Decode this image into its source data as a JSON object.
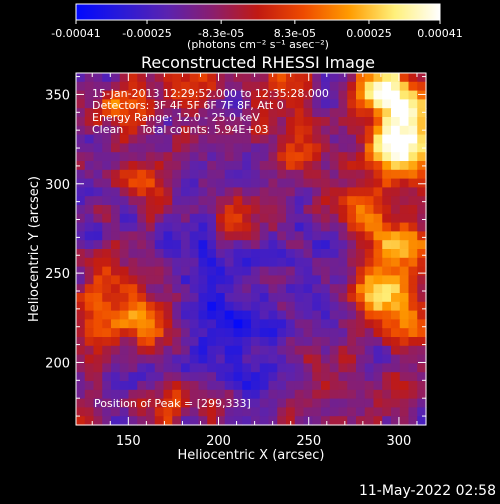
{
  "colorbar": {
    "tick_labels": [
      "-0.00041",
      "-0.00025",
      "-8.3e-05",
      "8.3e-05",
      "0.00025",
      "0.00041"
    ],
    "tick_values": [
      -0.00041,
      -0.00025,
      -8.3e-05,
      8.3e-05,
      0.00025,
      0.00041
    ],
    "range": [
      -0.00041,
      0.00041
    ],
    "units_text": "(photons cm⁻² s⁻¹ asec⁻²)",
    "colors": [
      "#0008ff",
      "#2a1ad8",
      "#5a22b0",
      "#8a1e6e",
      "#c11a12",
      "#ee4a00",
      "#ff9b00",
      "#fff07a",
      "#ffffff"
    ]
  },
  "chart_data": {
    "type": "heatmap",
    "title": "Reconstructed RHESSI Image",
    "xlabel": "Heliocentric X (arcsec)",
    "ylabel": "Heliocentric Y (arcsec)",
    "xlim": [
      121,
      315
    ],
    "ylim": [
      165,
      362
    ],
    "xticks": [
      150,
      200,
      250,
      300
    ],
    "yticks": [
      200,
      250,
      300,
      350
    ],
    "grid_size": [
      40,
      40
    ],
    "peak": [
      299,
      333
    ],
    "hot_spots": [
      {
        "x": 299,
        "y": 318,
        "strength": 1.0
      },
      {
        "x": 290,
        "y": 352,
        "strength": 0.85
      },
      {
        "x": 308,
        "y": 338,
        "strength": 0.7
      },
      {
        "x": 278,
        "y": 288,
        "strength": 0.6
      },
      {
        "x": 300,
        "y": 265,
        "strength": 0.65
      },
      {
        "x": 285,
        "y": 240,
        "strength": 0.55
      },
      {
        "x": 300,
        "y": 230,
        "strength": 0.5
      },
      {
        "x": 140,
        "y": 245,
        "strength": 0.45
      },
      {
        "x": 160,
        "y": 222,
        "strength": 0.6
      },
      {
        "x": 135,
        "y": 220,
        "strength": 0.5
      },
      {
        "x": 190,
        "y": 360,
        "strength": 0.55
      },
      {
        "x": 235,
        "y": 355,
        "strength": 0.5
      },
      {
        "x": 160,
        "y": 300,
        "strength": 0.4
      },
      {
        "x": 145,
        "y": 345,
        "strength": 0.45
      },
      {
        "x": 240,
        "y": 318,
        "strength": 0.3
      },
      {
        "x": 210,
        "y": 282,
        "strength": 0.35
      },
      {
        "x": 170,
        "y": 175,
        "strength": 0.3
      },
      {
        "x": 260,
        "y": 195,
        "strength": 0.25
      }
    ],
    "cold_spots": [
      {
        "x": 200,
        "y": 215,
        "strength": 0.9
      },
      {
        "x": 230,
        "y": 190,
        "strength": 0.7
      },
      {
        "x": 190,
        "y": 270,
        "strength": 0.6
      },
      {
        "x": 255,
        "y": 230,
        "strength": 0.5
      },
      {
        "x": 170,
        "y": 260,
        "strength": 0.45
      },
      {
        "x": 215,
        "y": 245,
        "strength": 0.55
      }
    ],
    "annotations": {
      "line1": "15-Jan-2013 12:29:52.000 to 12:35:28.000",
      "line2": "Detectors: 3F 4F 5F 6F 7F 8F, Att 0",
      "line3": "Energy Range: 12.0 - 25.0 keV",
      "line4": "Clean     Total counts: 5.94E+03",
      "peak_text": "Position of Peak = [299,333]"
    }
  },
  "footer": {
    "date_text": "11-May-2022 02:58"
  }
}
